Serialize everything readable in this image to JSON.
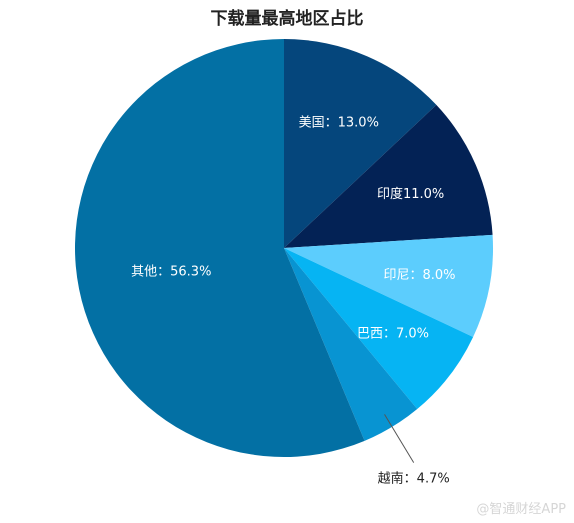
{
  "chart_data": {
    "type": "pie",
    "title": "下载量最高地区占比",
    "slices": [
      {
        "name": "美国",
        "value": 13.0,
        "label": "美国：13.0%",
        "color": "#05467c"
      },
      {
        "name": "印度",
        "value": 11.0,
        "label": "印度11.0%",
        "color": "#032255"
      },
      {
        "name": "印尼",
        "value": 8.0,
        "label": "印尼：8.0%",
        "color": "#5ccdfd"
      },
      {
        "name": "巴西",
        "value": 7.0,
        "label": "巴西：7.0%",
        "color": "#06b4f3"
      },
      {
        "name": "越南",
        "value": 4.7,
        "label": "越南：4.7%",
        "color": "#0894d2"
      },
      {
        "name": "其他",
        "value": 56.3,
        "label": "其他：56.3%",
        "color": "#0370a4"
      }
    ]
  },
  "watermark": "@智通财经APP"
}
